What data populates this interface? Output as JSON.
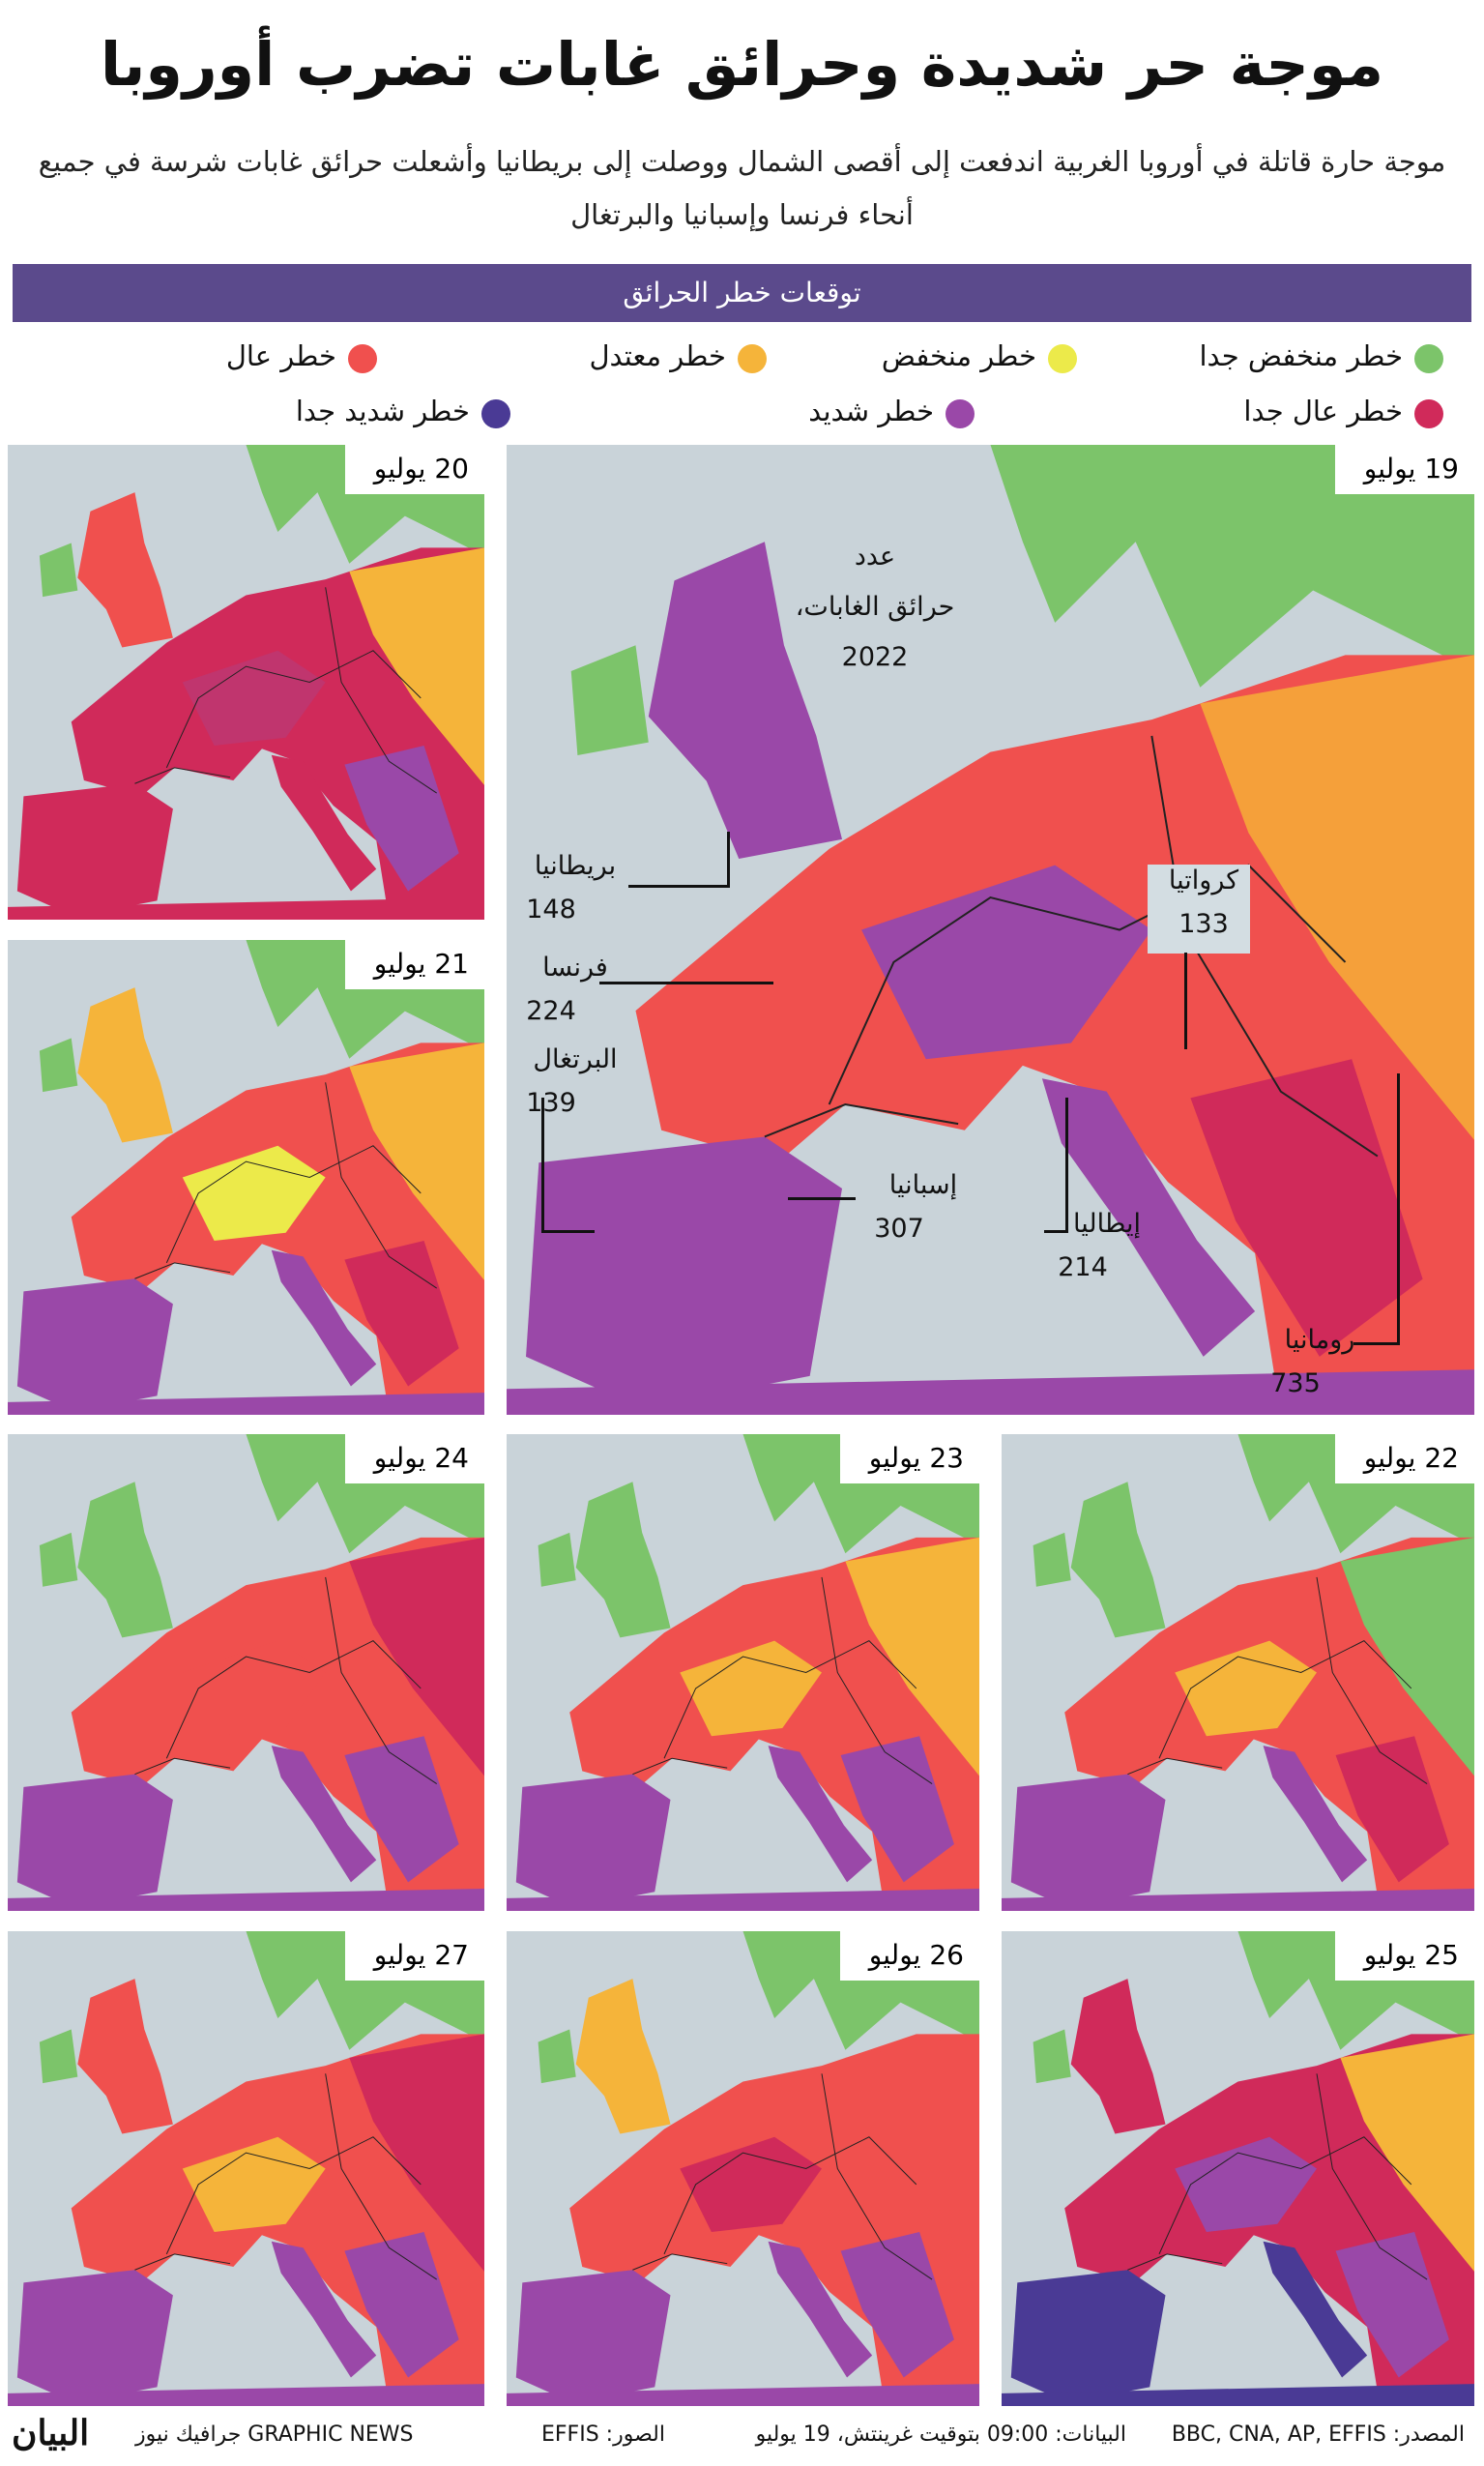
{
  "header": {
    "title": "موجة حر شديدة وحرائق غابات تضرب أوروبا",
    "subtitle_lines": [
      "موجة حارة قاتلة في أوروبا الغربية اندفعت إلى أقصى الشمال ووصلت إلى بريطانيا وأشعلت حرائق غابات شرسة في جميع",
      "أنحاء فرنسا وإسبانيا والبرتغال"
    ]
  },
  "section": {
    "title": "توقعات خطر الحرائق"
  },
  "legend": [
    {
      "label": "خطر منخفض جدا",
      "color": "#7cc46a"
    },
    {
      "label": "خطر منخفض",
      "color": "#ecea4a"
    },
    {
      "label": "خطر معتدل",
      "color": "#f5b43a"
    },
    {
      "label": "خطر عال",
      "color": "#f0504e"
    },
    {
      "label": "خطر عال جدا",
      "color": "#d02a5a"
    },
    {
      "label": "خطر شديد",
      "color": "#9a48a8"
    },
    {
      "label": "خطر شديد جدا",
      "color": "#4a3a95"
    }
  ],
  "maps": [
    {
      "date": "19 يوليو"
    },
    {
      "date": "20 يوليو"
    },
    {
      "date": "21 يوليو"
    },
    {
      "date": "22 يوليو"
    },
    {
      "date": "23 يوليو"
    },
    {
      "date": "24 يوليو"
    },
    {
      "date": "25 يوليو"
    },
    {
      "date": "26 يوليو"
    },
    {
      "date": "27 يوليو"
    }
  ],
  "fires": {
    "title_lines": [
      "عدد",
      "حرائق الغابات،",
      "2022"
    ],
    "countries": [
      {
        "name": "بريطانيا",
        "count": 148
      },
      {
        "name": "فرنسا",
        "count": 224
      },
      {
        "name": "البرتغال",
        "count": 139
      },
      {
        "name": "إسبانيا",
        "count": 307
      },
      {
        "name": "إيطاليا",
        "count": 214
      },
      {
        "name": "كرواتيا",
        "count": 133
      },
      {
        "name": "رومانيا",
        "count": 735
      }
    ]
  },
  "footer": {
    "source": "المصدر: BBC, CNA, AP, EFFIS",
    "data": "البيانات: 09:00 بتوقيت غرينتش، 19 يوليو",
    "images": "الصور: EFFIS",
    "credit": "GRAPHIC NEWS جرافيك نيوز",
    "logo": "البيان"
  }
}
